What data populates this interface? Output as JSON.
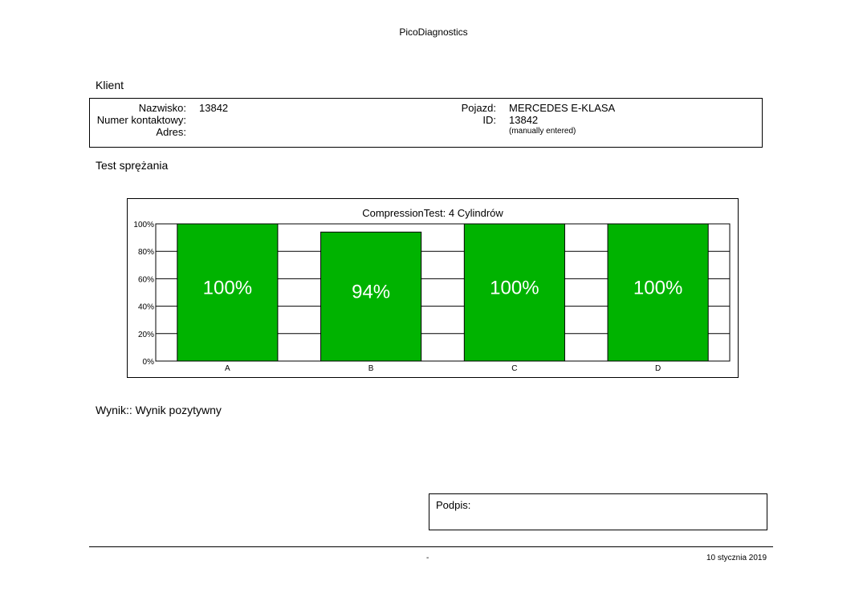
{
  "header": {
    "app_title": "PicoDiagnostics"
  },
  "client": {
    "section_title": "Klient",
    "fields": {
      "surname_label": "Nazwisko:",
      "surname_value": "13842",
      "phone_label": "Numer kontaktowy:",
      "phone_value": "",
      "address_label": "Adres:",
      "address_value": "",
      "vehicle_label": "Pojazd:",
      "vehicle_value": "MERCEDES E-KLASA",
      "id_label": "ID:",
      "id_value": "13842",
      "id_note": "(manually entered)"
    }
  },
  "test": {
    "section_title": "Test sprężania"
  },
  "chart_data": {
    "type": "bar",
    "title": "CompressionTest: 4 Cylindrów",
    "categories": [
      "A",
      "B",
      "C",
      "D"
    ],
    "values": [
      100,
      94,
      100,
      100
    ],
    "data_labels": [
      "100%",
      "94%",
      "100%",
      "100%"
    ],
    "ytick_labels": [
      "0%",
      "20%",
      "40%",
      "60%",
      "80%",
      "100%"
    ],
    "ylim": [
      0,
      100
    ],
    "grid": true,
    "bar_color": "#00b300"
  },
  "result": {
    "text": "Wynik:: Wynik pozytywny"
  },
  "signature": {
    "label": "Podpis:"
  },
  "footer": {
    "center": "-",
    "date": "10 stycznia 2019"
  }
}
